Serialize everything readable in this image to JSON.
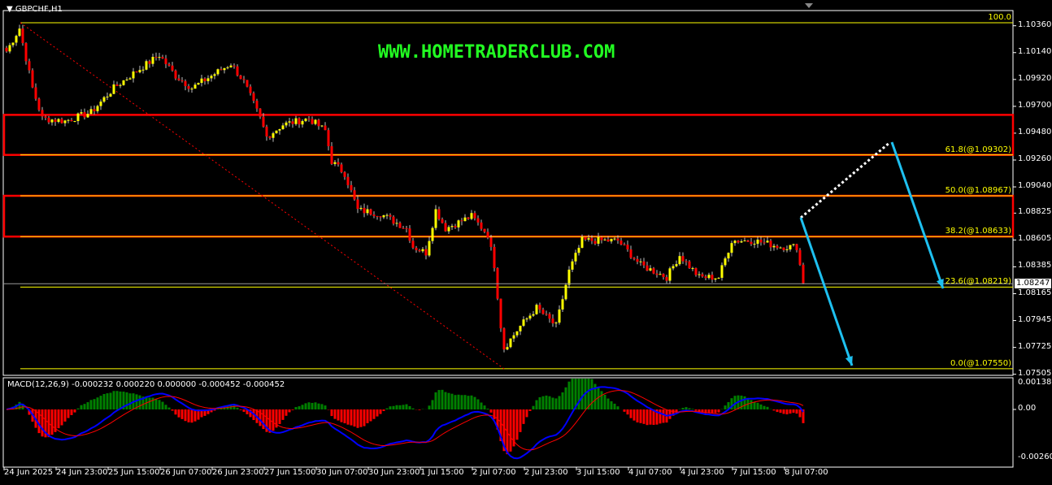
{
  "header": {
    "title": "GBPCHF,H1",
    "website": "WWW.HOMETRADERCLUB.COM"
  },
  "colors": {
    "bull": "#ffff00",
    "bear": "#ff0000",
    "fib": "#ffff00",
    "zone": "#ff0000",
    "arrow": "#1ec0f0",
    "macd_main": "#0000ff",
    "macd_signal": "#ff0000",
    "hist_pos": "#008000",
    "hist_neg": "#ff0000",
    "site": "#22ff22"
  },
  "chart_data": {
    "type": "candlestick",
    "symbol": "GBPCHF",
    "timeframe": "H1",
    "ylim": [
      1.07505,
      1.1036
    ],
    "y_ticks": [
      "1.10360",
      "1.10140",
      "1.09920",
      "1.09700",
      "1.09480",
      "1.09260",
      "1.09040",
      "1.08825",
      "1.08605",
      "1.08385",
      "1.08165",
      "1.07945",
      "1.07725",
      "1.07505"
    ],
    "x_ticks": [
      "24 Jun 2025",
      "24 Jun 23:00",
      "25 Jun 15:00",
      "26 Jun 07:00",
      "26 Jun 23:00",
      "27 Jun 15:00",
      "30 Jun 07:00",
      "30 Jun 23:00",
      "1 Jul 15:00",
      "2 Jul 07:00",
      "2 Jul 23:00",
      "3 Jul 15:00",
      "4 Jul 07:00",
      "4 Jul 23:00",
      "7 Jul 15:00",
      "8 Jul 07:00"
    ],
    "current_price": "1.08247",
    "approx_price_path": [
      [
        0,
        1.1015
      ],
      [
        4,
        1.1034
      ],
      [
        8,
        1.0985
      ],
      [
        11,
        1.096
      ],
      [
        18,
        1.0958
      ],
      [
        26,
        1.0965
      ],
      [
        33,
        1.0985
      ],
      [
        38,
        1.0995
      ],
      [
        47,
        1.1012
      ],
      [
        52,
        1.0995
      ],
      [
        57,
        1.0985
      ],
      [
        63,
        1.0995
      ],
      [
        69,
        1.1005
      ],
      [
        73,
        1.099
      ],
      [
        78,
        1.096
      ],
      [
        80,
        1.0945
      ],
      [
        85,
        1.0955
      ],
      [
        93,
        1.096
      ],
      [
        98,
        1.095
      ],
      [
        100,
        1.0925
      ],
      [
        104,
        1.0915
      ],
      [
        108,
        1.0885
      ],
      [
        115,
        1.0882
      ],
      [
        123,
        1.087
      ],
      [
        125,
        1.0855
      ],
      [
        129,
        1.085
      ],
      [
        132,
        1.0885
      ],
      [
        135,
        1.087
      ],
      [
        143,
        1.088
      ],
      [
        148,
        1.0865
      ],
      [
        150,
        1.084
      ],
      [
        152,
        1.079
      ],
      [
        153,
        1.0772
      ],
      [
        158,
        1.079
      ],
      [
        163,
        1.0805
      ],
      [
        169,
        1.079
      ],
      [
        173,
        1.0835
      ],
      [
        177,
        1.086
      ],
      [
        188,
        1.086
      ],
      [
        195,
        1.084
      ],
      [
        203,
        1.083
      ],
      [
        207,
        1.0848
      ],
      [
        213,
        1.083
      ],
      [
        219,
        1.083
      ],
      [
        223,
        1.086
      ],
      [
        230,
        1.086
      ],
      [
        238,
        1.0855
      ],
      [
        243,
        1.0855
      ],
      [
        245,
        1.0825
      ]
    ],
    "fibonacci": [
      {
        "label": "100.0",
        "price": 1.10385
      },
      {
        "label": "61.8(@1.09302)",
        "price": 1.09302
      },
      {
        "label": "50.0(@1.08967)",
        "price": 1.08967
      },
      {
        "label": "38.2(@1.08633)",
        "price": 1.08633
      },
      {
        "label": "23.6(@1.08219)",
        "price": 1.08219
      },
      {
        "label": "0.0(@1.07550)",
        "price": 1.0755
      }
    ],
    "zones": [
      [
        1.09302,
        1.0963
      ],
      [
        1.08633,
        1.08967
      ]
    ],
    "macd": {
      "label": "MACD(12,26,9) -0.000232 0.000220 0.000000 -0.000452 -0.000452",
      "y_ticks": [
        "0.00138",
        "0.00",
        "-0.002602"
      ],
      "ylim": [
        -0.002602,
        0.00138
      ]
    }
  }
}
